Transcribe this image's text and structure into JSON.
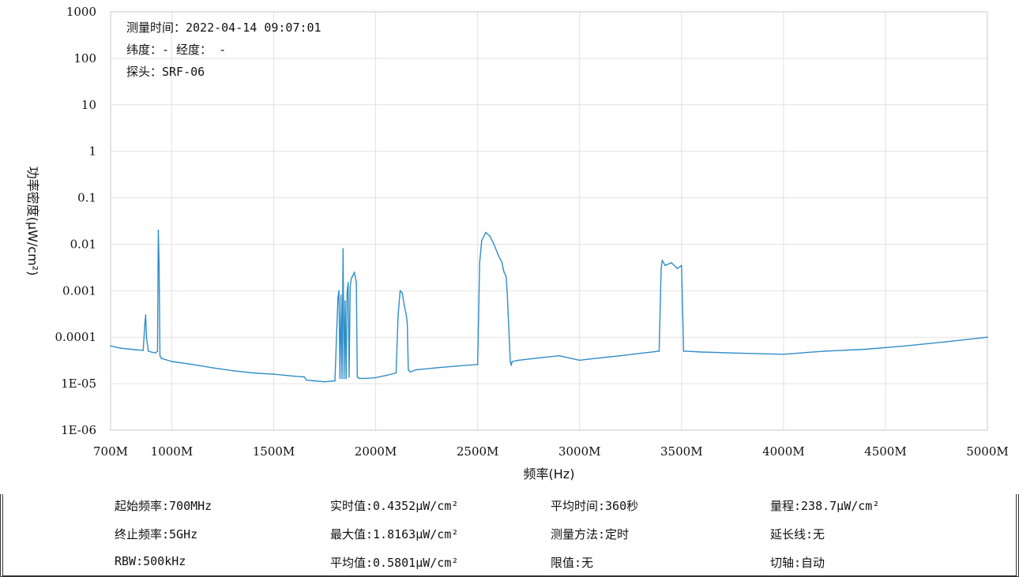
{
  "chart_data": {
    "type": "line",
    "xlabel": "频率(Hz)",
    "ylabel": "功率密度(μW/cm²)",
    "x_unit": "MHz",
    "xlim": [
      700,
      5000
    ],
    "ylim": [
      1e-06,
      1000
    ],
    "y_scale": "log",
    "grid": true,
    "x_ticks": [
      {
        "value": 700,
        "label": "700M"
      },
      {
        "value": 1000,
        "label": "1000M"
      },
      {
        "value": 1500,
        "label": "1500M"
      },
      {
        "value": 2000,
        "label": "2000M"
      },
      {
        "value": 2500,
        "label": "2500M"
      },
      {
        "value": 3000,
        "label": "3000M"
      },
      {
        "value": 3500,
        "label": "3500M"
      },
      {
        "value": 4000,
        "label": "4000M"
      },
      {
        "value": 4500,
        "label": "4500M"
      },
      {
        "value": 5000,
        "label": "5000M"
      }
    ],
    "y_ticks": [
      {
        "value": 1000,
        "label": "1000"
      },
      {
        "value": 100,
        "label": "100"
      },
      {
        "value": 10,
        "label": "10"
      },
      {
        "value": 1,
        "label": "1"
      },
      {
        "value": 0.1,
        "label": "0.1"
      },
      {
        "value": 0.01,
        "label": "0.01"
      },
      {
        "value": 0.001,
        "label": "0.001"
      },
      {
        "value": 0.0001,
        "label": "0.0001"
      },
      {
        "value": 1e-05,
        "label": "1E-05"
      },
      {
        "value": 1e-06,
        "label": "1E-06"
      }
    ],
    "line_color": "#2f8ec9",
    "series": [
      {
        "x": [
          700,
          750,
          800,
          860,
          868,
          872,
          876,
          885,
          900,
          920,
          930,
          934,
          938,
          942,
          950,
          1000,
          1100,
          1200,
          1300,
          1400,
          1500,
          1600,
          1650,
          1660,
          1700,
          1750,
          1800,
          1815,
          1820,
          1825,
          1830,
          1835,
          1840,
          1845,
          1850,
          1855,
          1860,
          1865,
          1870,
          1875,
          1880,
          1885,
          1890,
          1895,
          1900,
          1905,
          1910,
          1920,
          1950,
          2000,
          2050,
          2100,
          2110,
          2120,
          2130,
          2140,
          2150,
          2155,
          2160,
          2170,
          2200,
          2300,
          2400,
          2500,
          2510,
          2520,
          2540,
          2560,
          2580,
          2600,
          2620,
          2625,
          2630,
          2640,
          2645,
          2650,
          2660,
          2665,
          2670,
          2700,
          2800,
          2900,
          3000,
          3050,
          3100,
          3200,
          3300,
          3390,
          3400,
          3405,
          3420,
          3450,
          3480,
          3500,
          3510,
          3520,
          3600,
          3800,
          4000,
          4200,
          4400,
          4600,
          4800,
          5000
        ],
        "y": [
          6.5e-05,
          5.8e-05,
          5.5e-05,
          5.2e-05,
          0.0002,
          0.0003,
          0.0001,
          5e-05,
          4.8e-05,
          4.6e-05,
          5e-05,
          0.02,
          0.004,
          4e-05,
          3.5e-05,
          3e-05,
          2.6e-05,
          2.2e-05,
          1.9e-05,
          1.7e-05,
          1.6e-05,
          1.45e-05,
          1.4e-05,
          1.2e-05,
          1.15e-05,
          1.1e-05,
          1.15e-05,
          0.0007,
          0.001,
          1.3e-05,
          0.0008,
          1.3e-05,
          0.008,
          1.3e-05,
          0.0006,
          1.3e-05,
          0.0009,
          0.0015,
          1.4e-05,
          0.0012,
          0.0018,
          0.002,
          0.0022,
          0.0025,
          0.002,
          0.0015,
          1.4e-05,
          1.3e-05,
          1.3e-05,
          1.35e-05,
          1.5e-05,
          1.7e-05,
          0.0003,
          0.001,
          0.0009,
          0.0005,
          0.0003,
          0.0002,
          2e-05,
          1.8e-05,
          2e-05,
          2.2e-05,
          2.4e-05,
          2.6e-05,
          0.004,
          0.012,
          0.018,
          0.015,
          0.01,
          0.006,
          0.004,
          0.003,
          0.0025,
          0.002,
          0.0009,
          0.0003,
          3e-05,
          2.5e-05,
          3e-05,
          3.2e-05,
          3.6e-05,
          4e-05,
          3.2e-05,
          3.4e-05,
          3.6e-05,
          4e-05,
          4.5e-05,
          5e-05,
          0.003,
          0.0045,
          0.0035,
          0.004,
          0.003,
          0.0035,
          5e-05,
          5e-05,
          4.8e-05,
          4.5e-05,
          4.3e-05,
          5e-05,
          5.5e-05,
          6.5e-05,
          8e-05,
          0.0001
        ]
      }
    ]
  },
  "info": {
    "time": "测量时间：2022-04-14 09:07:01",
    "latlon": "纬度：- 经度： -",
    "probe": "探头：SRF-06"
  },
  "stats": {
    "start_freq": "起始频率:700MHz",
    "stop_freq": "终止频率:5GHz",
    "rbw": "RBW:500kHz",
    "realtime": "实时值:0.4352μW/cm²",
    "max": "最大值:1.8163μW/cm²",
    "avg": "平均值:0.5801μW/cm²",
    "avg_time": "平均时间:360秒",
    "method": "测量方法:定时",
    "limit": "限值:无",
    "range": "量程:238.7μW/cm²",
    "extension": "延长线:无",
    "cut_axis": "切轴:自动"
  }
}
